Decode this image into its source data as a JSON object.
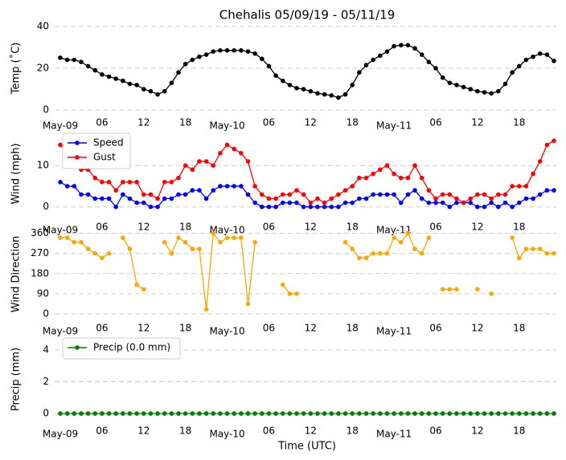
{
  "chart_data": [
    {
      "type": "line",
      "title": "Chehalis 05/09/19 - 05/11/19",
      "ylabel": "Temp (˚C)",
      "categories": [
        "May-09",
        null,
        null,
        null,
        null,
        null,
        "06",
        null,
        null,
        null,
        null,
        null,
        "12",
        null,
        null,
        null,
        null,
        null,
        "18",
        null,
        null,
        null,
        null,
        null,
        "May-10",
        null,
        null,
        null,
        null,
        null,
        "06",
        null,
        null,
        null,
        null,
        null,
        "12",
        null,
        null,
        null,
        null,
        null,
        "18",
        null,
        null,
        null,
        null,
        null,
        "May-11",
        null,
        null,
        null,
        null,
        null,
        "06",
        null,
        null,
        null,
        null,
        null,
        "12",
        null,
        null,
        null,
        null,
        null,
        "18",
        null,
        null,
        null,
        null,
        null
      ],
      "ylim": [
        -3,
        43
      ],
      "yticks": [
        0,
        20,
        40
      ],
      "grid": true,
      "series": [
        {
          "color": "#000000",
          "values": [
            25,
            24,
            24,
            23,
            21,
            19,
            17,
            16,
            15,
            14,
            12.5,
            12,
            10,
            9,
            7.5,
            9,
            13,
            18,
            22,
            24,
            25.5,
            26.5,
            28,
            28.5,
            28.5,
            28.5,
            28.5,
            28,
            27,
            24.5,
            21,
            16.5,
            14,
            12,
            10.5,
            10,
            9,
            8,
            7.5,
            7,
            6,
            7.5,
            12,
            18,
            21.5,
            24,
            26,
            28,
            30.5,
            31,
            31,
            29.5,
            26.5,
            23,
            20,
            15.5,
            13,
            12,
            11,
            10,
            9,
            8.5,
            8,
            9,
            12.5,
            18,
            21,
            24,
            25.5,
            27,
            26.5,
            23.5
          ]
        }
      ]
    },
    {
      "type": "line",
      "ylabel": "Wind (mph)",
      "categories": [
        "May-09",
        null,
        null,
        null,
        null,
        null,
        "06",
        null,
        null,
        null,
        null,
        null,
        "12",
        null,
        null,
        null,
        null,
        null,
        "18",
        null,
        null,
        null,
        null,
        null,
        "May-10",
        null,
        null,
        null,
        null,
        null,
        "06",
        null,
        null,
        null,
        null,
        null,
        "12",
        null,
        null,
        null,
        null,
        null,
        "18",
        null,
        null,
        null,
        null,
        null,
        "May-11",
        null,
        null,
        null,
        null,
        null,
        "06",
        null,
        null,
        null,
        null,
        null,
        "12",
        null,
        null,
        null,
        null,
        null,
        "18",
        null,
        null,
        null,
        null,
        null
      ],
      "ylim": [
        -2,
        18
      ],
      "yticks": [
        0,
        10
      ],
      "grid": true,
      "legend": "upper left",
      "series": [
        {
          "name": "Speed",
          "color": "#0000ff",
          "values": [
            6,
            5,
            5,
            3,
            3,
            2,
            2,
            2,
            0,
            3,
            2,
            1,
            1,
            0,
            0,
            2,
            2,
            3,
            3,
            4,
            4,
            2,
            4,
            5,
            5,
            5,
            5,
            3,
            1,
            0,
            0,
            0,
            1,
            1,
            1,
            0,
            0,
            0,
            0,
            0,
            0,
            1,
            1,
            2,
            2,
            3,
            3,
            3,
            3,
            1,
            3,
            4,
            2,
            1,
            1,
            1,
            0,
            1,
            1,
            1,
            0,
            0,
            1,
            0,
            1,
            0,
            1,
            2,
            2,
            3,
            4,
            4
          ]
        },
        {
          "name": "Gust",
          "color": "#ff0000",
          "values": [
            15,
            13,
            11,
            9,
            9,
            7,
            6,
            6,
            4,
            6,
            6,
            6,
            3,
            3,
            2,
            6,
            6,
            7,
            10,
            9,
            11,
            11,
            10,
            13,
            15,
            14,
            13,
            11,
            5,
            3,
            2,
            2,
            3,
            3,
            4,
            3,
            1,
            2,
            1,
            2,
            3,
            4,
            5,
            7,
            7,
            8,
            9,
            10,
            8,
            7,
            7,
            10,
            7,
            4,
            2,
            3,
            3,
            2,
            1,
            2,
            3,
            3,
            2,
            3,
            3,
            5,
            5,
            5,
            8,
            11,
            15,
            16
          ]
        }
      ]
    },
    {
      "type": "line",
      "ylabel": "Wind Direction",
      "categories": [
        "May-09",
        null,
        null,
        null,
        null,
        null,
        "06",
        null,
        null,
        null,
        null,
        null,
        "12",
        null,
        null,
        null,
        null,
        null,
        "18",
        null,
        null,
        null,
        null,
        null,
        "May-10",
        null,
        null,
        null,
        null,
        null,
        "06",
        null,
        null,
        null,
        null,
        null,
        "12",
        null,
        null,
        null,
        null,
        null,
        "18",
        null,
        null,
        null,
        null,
        null,
        "May-11",
        null,
        null,
        null,
        null,
        null,
        "06",
        null,
        null,
        null,
        null,
        null,
        "12",
        null,
        null,
        null,
        null,
        null,
        "18",
        null,
        null,
        null,
        null,
        null
      ],
      "ylim": [
        -25,
        380
      ],
      "yticks": [
        0,
        90,
        180,
        270,
        360
      ],
      "grid": true,
      "series": [
        {
          "color": "#ffa500",
          "values": [
            340,
            340,
            320,
            320,
            290,
            270,
            250,
            270,
            null,
            340,
            290,
            130,
            110,
            null,
            null,
            320,
            270,
            340,
            320,
            290,
            290,
            20,
            360,
            320,
            340,
            340,
            340,
            45,
            320,
            null,
            null,
            null,
            130,
            90,
            90,
            null,
            null,
            null,
            null,
            null,
            null,
            320,
            290,
            250,
            250,
            270,
            270,
            270,
            340,
            320,
            360,
            290,
            270,
            340,
            null,
            110,
            110,
            110,
            null,
            null,
            110,
            null,
            90,
            null,
            null,
            340,
            250,
            290,
            290,
            290,
            270,
            270
          ]
        }
      ]
    },
    {
      "type": "line",
      "ylabel": "Precip (mm)",
      "xlabel": "Time (UTC)",
      "categories": [
        "May-09",
        null,
        null,
        null,
        null,
        null,
        "06",
        null,
        null,
        null,
        null,
        null,
        "12",
        null,
        null,
        null,
        null,
        null,
        "18",
        null,
        null,
        null,
        null,
        null,
        "May-10",
        null,
        null,
        null,
        null,
        null,
        "06",
        null,
        null,
        null,
        null,
        null,
        "12",
        null,
        null,
        null,
        null,
        null,
        "18",
        null,
        null,
        null,
        null,
        null,
        "May-11",
        null,
        null,
        null,
        null,
        null,
        "06",
        null,
        null,
        null,
        null,
        null,
        "12",
        null,
        null,
        null,
        null,
        null,
        "18",
        null,
        null,
        null,
        null,
        null
      ],
      "ylim": [
        -0.5,
        4.8
      ],
      "yticks": [
        0,
        2,
        4
      ],
      "grid": true,
      "legend": "upper left",
      "series": [
        {
          "name": "Precip (0.0 mm)",
          "color": "#008000",
          "values": [
            0,
            0,
            0,
            0,
            0,
            0,
            0,
            0,
            0,
            0,
            0,
            0,
            0,
            0,
            0,
            0,
            0,
            0,
            0,
            0,
            0,
            0,
            0,
            0,
            0,
            0,
            0,
            0,
            0,
            0,
            0,
            0,
            0,
            0,
            0,
            0,
            0,
            0,
            0,
            0,
            0,
            0,
            0,
            0,
            0,
            0,
            0,
            0,
            0,
            0,
            0,
            0,
            0,
            0,
            0,
            0,
            0,
            0,
            0,
            0,
            0,
            0,
            0,
            0,
            0,
            0,
            0,
            0,
            0,
            0,
            0,
            0
          ]
        }
      ]
    }
  ]
}
